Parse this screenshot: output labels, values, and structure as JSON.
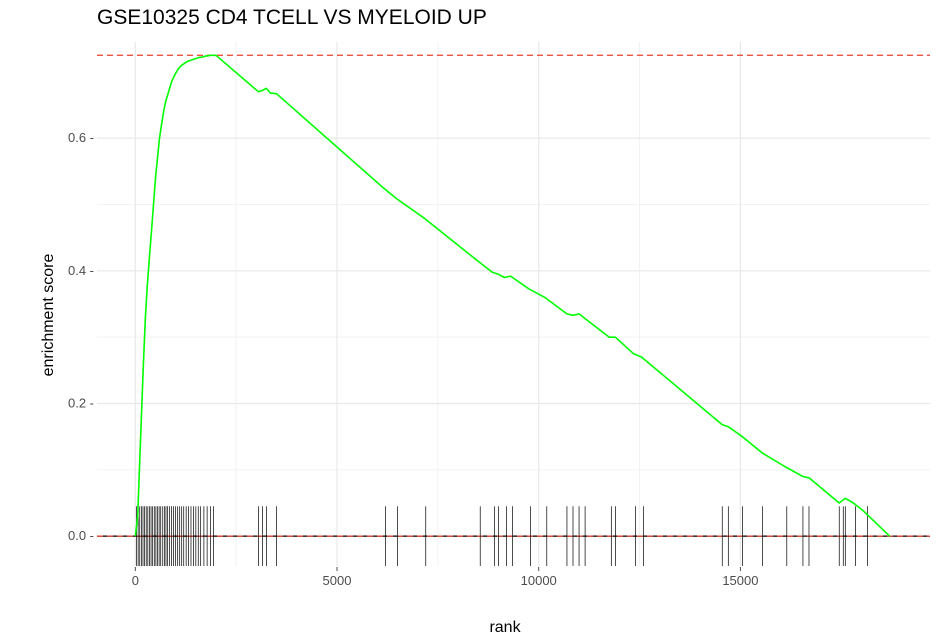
{
  "chart_data": {
    "type": "line",
    "title": "GSE10325 CD4 TCELL VS MYELOID UP",
    "xlabel": "rank",
    "ylabel": "enrichment score",
    "xlim": [
      -950,
      19700
    ],
    "ylim": [
      -0.045,
      0.745
    ],
    "x_ticks": [
      0,
      5000,
      10000,
      15000
    ],
    "x_tick_labels": [
      "0",
      "5000",
      "10000",
      "15000"
    ],
    "y_ticks": [
      0.0,
      0.2,
      0.4,
      0.6
    ],
    "y_tick_labels": [
      "0.0 -",
      "0.2 -",
      "0.4 -",
      "0.6 -"
    ],
    "grid": true,
    "reference_lines": {
      "max_es": 0.725,
      "min_es": 0.0,
      "color": "#e8402a"
    },
    "zero_line_color": "#000000",
    "series": [
      {
        "color": "#00ff00",
        "x": [
          0,
          60,
          100,
          150,
          200,
          250,
          300,
          350,
          400,
          450,
          500,
          550,
          600,
          650,
          700,
          750,
          800,
          850,
          900,
          950,
          1000,
          1050,
          1100,
          1150,
          1200,
          1250,
          1300,
          1350,
          1400,
          1450,
          1500,
          1550,
          1600,
          1650,
          1700,
          1750,
          1800,
          1850,
          1900,
          1950,
          2000,
          3050,
          3150,
          3250,
          3350,
          3500,
          6150,
          6450,
          7150,
          8550,
          8850,
          9000,
          9150,
          9300,
          9750,
          10150,
          10700,
          10850,
          11000,
          11150,
          11750,
          11900,
          12350,
          12550,
          14550,
          14700,
          15050,
          15550,
          16100,
          16550,
          16700,
          17450,
          17600,
          17800,
          18050,
          18700
        ],
        "y": [
          0.0,
          0.03,
          0.1,
          0.18,
          0.26,
          0.33,
          0.38,
          0.42,
          0.46,
          0.5,
          0.54,
          0.57,
          0.6,
          0.62,
          0.64,
          0.655,
          0.665,
          0.675,
          0.685,
          0.692,
          0.698,
          0.703,
          0.707,
          0.71,
          0.712,
          0.714,
          0.716,
          0.717,
          0.718,
          0.719,
          0.72,
          0.721,
          0.722,
          0.722,
          0.723,
          0.724,
          0.724,
          0.725,
          0.725,
          0.725,
          0.725,
          0.67,
          0.672,
          0.675,
          0.668,
          0.667,
          0.525,
          0.51,
          0.48,
          0.412,
          0.398,
          0.395,
          0.39,
          0.392,
          0.373,
          0.36,
          0.335,
          0.333,
          0.335,
          0.328,
          0.3,
          0.3,
          0.275,
          0.27,
          0.168,
          0.165,
          0.15,
          0.125,
          0.105,
          0.09,
          0.088,
          0.05,
          0.057,
          0.05,
          0.038,
          0.0
        ]
      }
    ],
    "gene_hits": [
      30,
      70,
      110,
      150,
      190,
      230,
      270,
      310,
      350,
      390,
      430,
      470,
      510,
      550,
      590,
      630,
      680,
      720,
      760,
      800,
      850,
      900,
      950,
      1000,
      1050,
      1100,
      1150,
      1200,
      1260,
      1320,
      1380,
      1440,
      1500,
      1560,
      1620,
      1700,
      1780,
      1860,
      1940,
      3050,
      3150,
      3250,
      3500,
      6200,
      6500,
      7200,
      8550,
      8900,
      9000,
      9200,
      9350,
      9800,
      10200,
      10700,
      10850,
      11000,
      11150,
      11800,
      11900,
      12400,
      12600,
      14550,
      14700,
      15050,
      15550,
      16150,
      16550,
      16700,
      17450,
      17550,
      17600,
      17850,
      18150
    ]
  }
}
